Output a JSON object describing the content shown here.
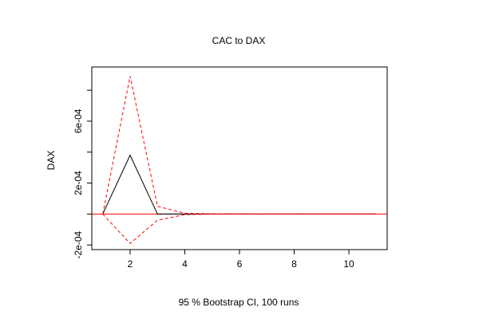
{
  "chart_data": {
    "type": "line",
    "title": "CAC to DAX",
    "xlabel": "95 % Bootstrap CI,  100 runs",
    "ylabel": "DAX",
    "xlim": [
      0.6,
      11.4
    ],
    "ylim": [
      -0.00023,
      0.00095
    ],
    "x_ticks": [
      2,
      4,
      6,
      8,
      10
    ],
    "x_tick_labels": [
      "2",
      "4",
      "6",
      "8",
      "10"
    ],
    "y_ticks": [
      -0.0002,
      0.0002,
      0.0006
    ],
    "y_tick_labels": [
      "-2e-04",
      "2e-04",
      "6e-04"
    ],
    "y_minor_ticks": [
      0.0,
      0.0004,
      0.0008
    ],
    "grid": false,
    "reference_line": {
      "y": 0,
      "color": "#ff0000"
    },
    "x": [
      1,
      2,
      3,
      4,
      5,
      6,
      7,
      8,
      9,
      10,
      11
    ],
    "series": [
      {
        "role": "estimate",
        "style": "solid",
        "color": "#000000",
        "values": [
          0,
          0.00038,
          0,
          0,
          0,
          0,
          0,
          0,
          0,
          0,
          0
        ]
      },
      {
        "role": "upper",
        "style": "dashed",
        "color": "#ff0000",
        "values": [
          0,
          0.00089,
          5e-05,
          5e-06,
          1e-06,
          0,
          0,
          0,
          0,
          0,
          0
        ]
      },
      {
        "role": "lower",
        "style": "dashed",
        "color": "#ff0000",
        "values": [
          0,
          -0.00019,
          -4e-05,
          -4e-06,
          -1e-06,
          0,
          0,
          0,
          0,
          0,
          0
        ]
      }
    ]
  }
}
